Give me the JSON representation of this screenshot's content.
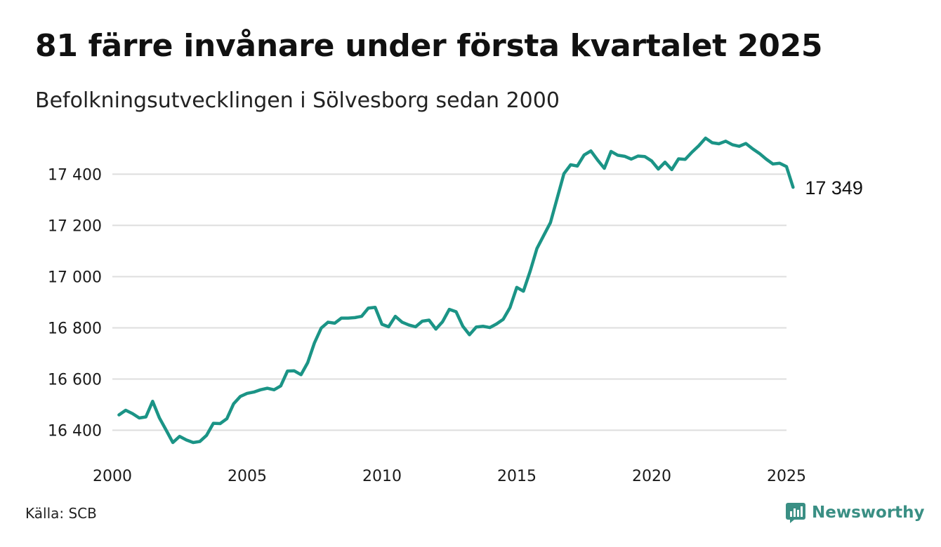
{
  "header": {
    "title": "81 färre invånare under första kvartalet 2025",
    "subtitle": "Befolkningsutvecklingen i Sölvesborg sedan 2000"
  },
  "footer": {
    "source": "Källa: SCB",
    "brand": "Newsworthy"
  },
  "colors": {
    "line": "#1b9486",
    "grid": "#dedede",
    "brand": "#3a8f84"
  },
  "chart_data": {
    "type": "line",
    "title": "81 färre invånare under första kvartalet 2025",
    "subtitle": "Befolkningsutvecklingen i Sölvesborg sedan 2000",
    "xlabel": "",
    "ylabel": "",
    "xlim": [
      2000,
      2025
    ],
    "ylim": [
      16300,
      17560
    ],
    "x_ticks": [
      2000,
      2005,
      2010,
      2015,
      2020,
      2025
    ],
    "y_ticks": [
      16400,
      16600,
      16800,
      17000,
      17200,
      17400
    ],
    "y_tick_labels": [
      "16 400",
      "16 600",
      "16 800",
      "17 000",
      "17 200",
      "17 400"
    ],
    "grid": "horizontal",
    "end_label": "17 349",
    "series": [
      {
        "values": [
          [
            "2000-03-31",
            16460
          ],
          [
            "2000-06-30",
            16478
          ],
          [
            "2000-09-30",
            16465
          ],
          [
            "2000-12-31",
            16448
          ],
          [
            "2001-03-31",
            16452
          ],
          [
            "2001-06-30",
            16513
          ],
          [
            "2001-09-30",
            16448
          ],
          [
            "2001-12-31",
            16400
          ],
          [
            "2002-03-31",
            16352
          ],
          [
            "2002-06-30",
            16376
          ],
          [
            "2002-09-30",
            16362
          ],
          [
            "2002-12-31",
            16352
          ],
          [
            "2003-03-31",
            16356
          ],
          [
            "2003-06-30",
            16380
          ],
          [
            "2003-09-30",
            16427
          ],
          [
            "2003-12-31",
            16426
          ],
          [
            "2004-03-31",
            16445
          ],
          [
            "2004-06-30",
            16503
          ],
          [
            "2004-09-30",
            16532
          ],
          [
            "2004-12-31",
            16544
          ],
          [
            "2005-03-31",
            16549
          ],
          [
            "2005-06-30",
            16558
          ],
          [
            "2005-09-30",
            16564
          ],
          [
            "2005-12-31",
            16558
          ],
          [
            "2006-03-31",
            16573
          ],
          [
            "2006-06-30",
            16631
          ],
          [
            "2006-09-30",
            16632
          ],
          [
            "2006-12-31",
            16617
          ],
          [
            "2007-03-31",
            16664
          ],
          [
            "2007-06-30",
            16741
          ],
          [
            "2007-09-30",
            16799
          ],
          [
            "2007-12-31",
            16822
          ],
          [
            "2008-03-31",
            16818
          ],
          [
            "2008-06-30",
            16838
          ],
          [
            "2008-09-30",
            16838
          ],
          [
            "2008-12-31",
            16840
          ],
          [
            "2009-03-31",
            16845
          ],
          [
            "2009-06-30",
            16877
          ],
          [
            "2009-09-30",
            16880
          ],
          [
            "2009-12-31",
            16814
          ],
          [
            "2010-03-31",
            16804
          ],
          [
            "2010-06-30",
            16845
          ],
          [
            "2010-09-30",
            16822
          ],
          [
            "2010-12-31",
            16811
          ],
          [
            "2011-03-31",
            16804
          ],
          [
            "2011-06-30",
            16826
          ],
          [
            "2011-09-30",
            16830
          ],
          [
            "2011-12-31",
            16795
          ],
          [
            "2012-03-31",
            16824
          ],
          [
            "2012-06-30",
            16872
          ],
          [
            "2012-09-30",
            16863
          ],
          [
            "2012-12-31",
            16806
          ],
          [
            "2013-03-31",
            16773
          ],
          [
            "2013-06-30",
            16803
          ],
          [
            "2013-09-30",
            16806
          ],
          [
            "2013-12-31",
            16801
          ],
          [
            "2014-03-31",
            16815
          ],
          [
            "2014-06-30",
            16833
          ],
          [
            "2014-09-30",
            16879
          ],
          [
            "2014-12-31",
            16958
          ],
          [
            "2015-03-31",
            16943
          ],
          [
            "2015-06-30",
            17021
          ],
          [
            "2015-09-30",
            17110
          ],
          [
            "2015-12-31",
            17161
          ],
          [
            "2016-03-31",
            17211
          ],
          [
            "2016-06-30",
            17306
          ],
          [
            "2016-09-30",
            17402
          ],
          [
            "2016-12-31",
            17437
          ],
          [
            "2017-03-31",
            17432
          ],
          [
            "2017-06-30",
            17475
          ],
          [
            "2017-09-30",
            17491
          ],
          [
            "2017-12-31",
            17455
          ],
          [
            "2018-03-31",
            17423
          ],
          [
            "2018-06-30",
            17489
          ],
          [
            "2018-09-30",
            17474
          ],
          [
            "2018-12-31",
            17470
          ],
          [
            "2019-03-31",
            17459
          ],
          [
            "2019-06-30",
            17471
          ],
          [
            "2019-09-30",
            17469
          ],
          [
            "2019-12-31",
            17452
          ],
          [
            "2020-03-31",
            17420
          ],
          [
            "2020-06-30",
            17447
          ],
          [
            "2020-09-30",
            17418
          ],
          [
            "2020-12-31",
            17460
          ],
          [
            "2021-03-31",
            17458
          ],
          [
            "2021-06-30",
            17486
          ],
          [
            "2021-09-30",
            17511
          ],
          [
            "2021-12-31",
            17541
          ],
          [
            "2022-03-31",
            17523
          ],
          [
            "2022-06-30",
            17519
          ],
          [
            "2022-09-30",
            17529
          ],
          [
            "2022-12-31",
            17515
          ],
          [
            "2023-03-31",
            17509
          ],
          [
            "2023-06-30",
            17520
          ],
          [
            "2023-09-30",
            17499
          ],
          [
            "2023-12-31",
            17481
          ],
          [
            "2024-03-31",
            17459
          ],
          [
            "2024-06-30",
            17440
          ],
          [
            "2024-09-30",
            17443
          ],
          [
            "2024-12-31",
            17430
          ],
          [
            "2025-03-31",
            17349
          ]
        ]
      }
    ]
  }
}
